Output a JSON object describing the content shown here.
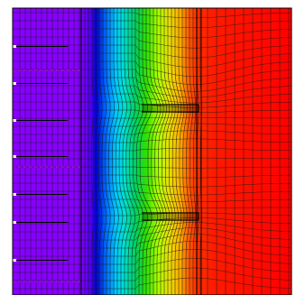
{
  "figure": {
    "description_visible_text": [],
    "colormap": {
      "name": "rainbow",
      "stops": [
        "#8800ff",
        "#8800ff",
        "#7a00ff",
        "#4e00f0",
        "#0000d0",
        "#0060ff",
        "#00c8ff",
        "#00e0d0",
        "#00d060",
        "#30e000",
        "#a8ff00",
        "#e8e000",
        "#ffb000",
        "#ff6000",
        "#ff3000",
        "#ff1a00",
        "#ff0000"
      ],
      "left_color": "#8800ff",
      "right_color": "#ff0000"
    },
    "mesh_line_color": "#1a1a1a",
    "outline_color": "#000000",
    "dashed_line_color": "#c0307a",
    "wall_notch_color": "#ffffff"
  }
}
